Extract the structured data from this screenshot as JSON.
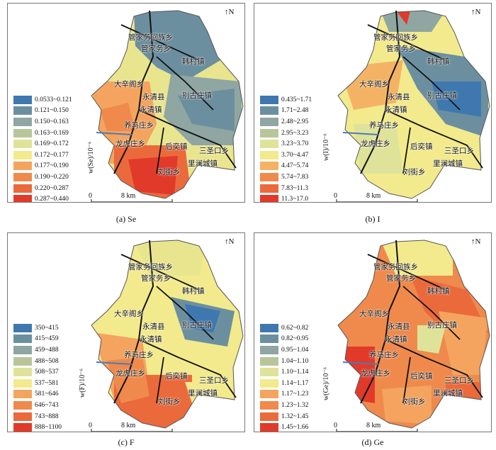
{
  "colors": {
    "se": [
      "#3f78ae",
      "#6c8fa0",
      "#8fa6a2",
      "#b8c59a",
      "#dfe39a",
      "#f2ea8c",
      "#f4a45e",
      "#ef8a4c",
      "#ea6a3c",
      "#e23a2a"
    ],
    "i": [
      "#3f78ae",
      "#6c8fa0",
      "#8fa6a2",
      "#b8c59a",
      "#dfe39a",
      "#f2ea8c",
      "#f4b364",
      "#ef8a4c",
      "#ea6a3c",
      "#e23a2a"
    ],
    "f": [
      "#3f78ae",
      "#6c8fa0",
      "#8fa6a2",
      "#b8c59a",
      "#dfe39a",
      "#f2ea8c",
      "#f4a45e",
      "#ef8a4c",
      "#ea6a3c",
      "#e23a2a"
    ],
    "ge": [
      "#3f78ae",
      "#6c8fa0",
      "#8fa6a2",
      "#b8c59a",
      "#dfe39a",
      "#f2ea8c",
      "#f4a45e",
      "#ef8a4c",
      "#ea6a3c",
      "#e23a2a"
    ]
  },
  "common": {
    "north": "N",
    "scale_zero": "0",
    "scale_len": "8 km",
    "places": {
      "guanjiawu_huizu": "管家务回族乡",
      "guanjiawu": "管家务乡",
      "hancun": "韩村镇",
      "daxinge": "大辛阁乡",
      "yongqingxian": "永清县",
      "yongqingzhen": "永清镇",
      "biegu": "别古庄镇",
      "yangma": "养马庄乡",
      "longhu": "龙虎庄乡",
      "houyi": "后奕镇",
      "sansheng": "三圣口乡",
      "lilan": "里澜城镇",
      "liujie": "刘街乡"
    }
  },
  "panels": [
    {
      "caption": "(a) Se",
      "ylabel": "w(Se)/10⁻⁶",
      "legend": [
        "0.0533~0.121",
        "0.121~0.150",
        "0.150~0.163",
        "0.163~0.169",
        "0.169~0.172",
        "0.172~0.177",
        "0.177~0.190",
        "0.190~0.220",
        "0.220~0.287",
        "0.287~0.440"
      ]
    },
    {
      "caption": "(b) I",
      "ylabel": "w(I)/10⁻⁶",
      "legend": [
        "0.435~1.71",
        "1.71~2.48",
        "2.48~2.95",
        "2.95~3.23",
        "3.23~3.70",
        "3.70~4.47",
        "4.47~5.74",
        "5.74~7.83",
        "7.83~11.3",
        "11.3~17.0"
      ]
    },
    {
      "caption": "(c) F",
      "ylabel": "w(F)/10⁻⁶",
      "legend": [
        "350~415",
        "415~459",
        "459~488",
        "488~508",
        "508~537",
        "537~581",
        "581~646",
        "646~743",
        "743~888",
        "888~1100"
      ]
    },
    {
      "caption": "(d) Ge",
      "ylabel": "w(Ge)/10⁻⁶",
      "legend": [
        "0.62~0.82",
        "0.82~0.95",
        "0.95~1.04",
        "1.04~1.10",
        "1.10~1.14",
        "1.14~1.17",
        "1.17~1.23",
        "1.23~1.32",
        "1.32~1.45",
        "1.45~1.66"
      ]
    }
  ]
}
